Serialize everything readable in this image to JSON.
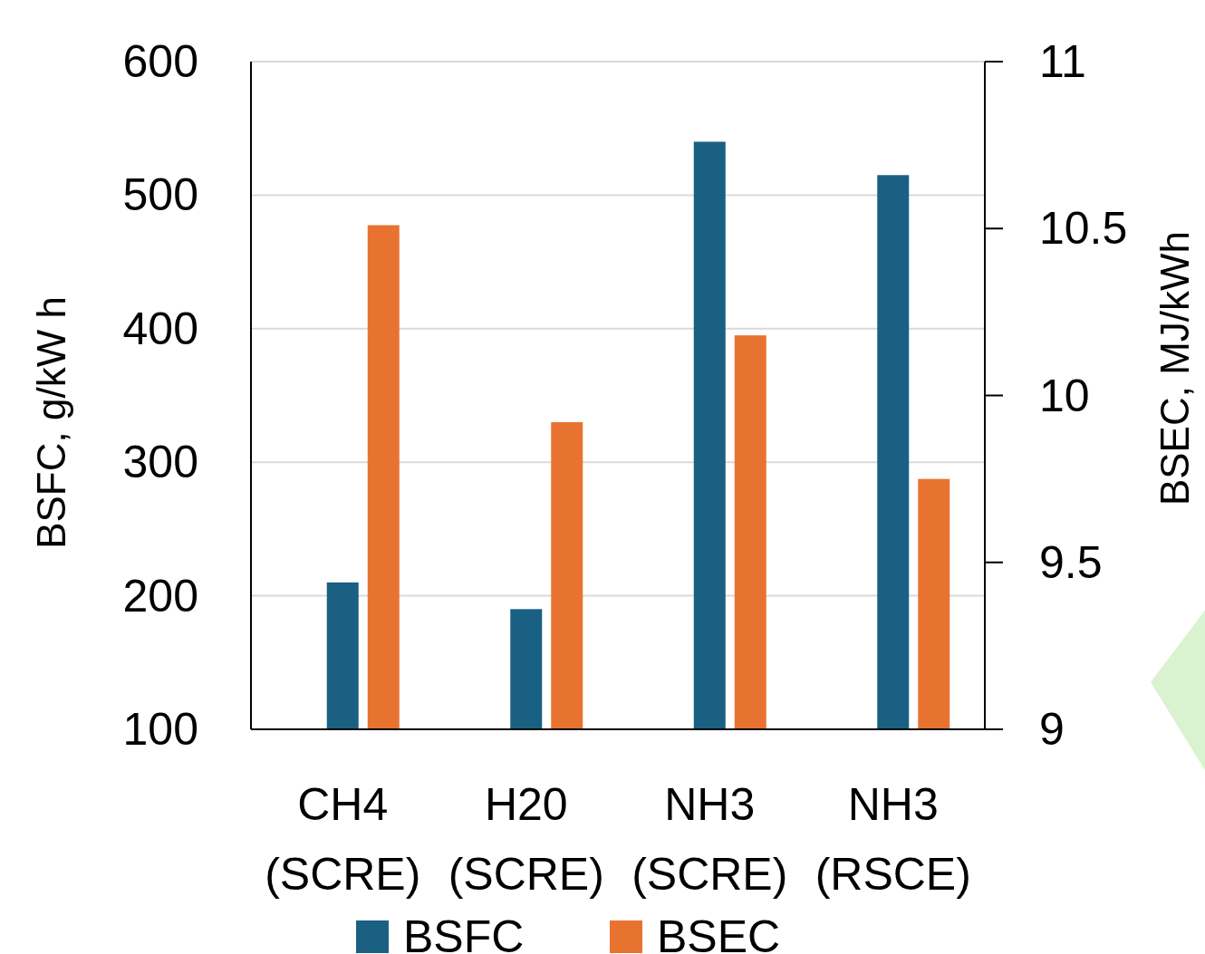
{
  "chart_data": {
    "type": "bar",
    "categories": [
      "CH4\n(SCRE)",
      "H20\n(SCRE)",
      "NH3\n(SCRE)",
      "NH3\n(RSCE)"
    ],
    "series": [
      {
        "name": "BSFC",
        "color": "#1a6083",
        "values": [
          210,
          190,
          540,
          515
        ]
      },
      {
        "name": "BSEC",
        "color": "#e87331",
        "values": [
          10.51,
          9.92,
          10.18,
          9.75
        ],
        "axis": "y2"
      }
    ],
    "ylabel": "BSFC, g/kW h",
    "y2label": "BSEC, MJ/kWh",
    "ylim": [
      100,
      600
    ],
    "yticks": [
      100,
      200,
      300,
      400,
      500,
      600
    ],
    "y2lim": [
      9,
      11
    ],
    "y2ticks": [
      9,
      9.5,
      10,
      10.5,
      11
    ],
    "grid": "y",
    "legend": "bottom"
  }
}
